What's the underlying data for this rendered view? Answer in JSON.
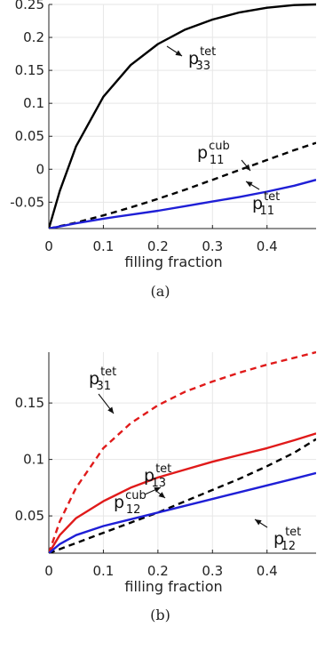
{
  "chart_data": [
    {
      "type": "line",
      "caption": "(a)",
      "xlabel": "filling fraction",
      "ylabel": "",
      "xlim": [
        0,
        0.49
      ],
      "ylim": [
        -0.09,
        0.25
      ],
      "xticks": [
        "0",
        "0.1",
        "0.2",
        "0.3",
        "0.4"
      ],
      "yticks": [
        "0.25",
        "0.2",
        "0.15",
        "0.1",
        "0.05",
        "0",
        "-0.05"
      ],
      "grid": true,
      "series": [
        {
          "name": "p33 tet",
          "label_base": "p",
          "label_sub": "33",
          "label_sup": "tet",
          "color": "#000000",
          "dash": "solid",
          "x": [
            0,
            0.02,
            0.05,
            0.1,
            0.15,
            0.2,
            0.25,
            0.3,
            0.35,
            0.4,
            0.45,
            0.49
          ],
          "y": [
            -0.09,
            -0.033,
            0.035,
            0.11,
            0.158,
            0.19,
            0.212,
            0.227,
            0.238,
            0.245,
            0.249,
            0.25
          ]
        },
        {
          "name": "p11 cub",
          "label_base": "p",
          "label_sub": "11",
          "label_sup": "cub",
          "color": "#000000",
          "dash": "dashed",
          "x": [
            0,
            0.05,
            0.1,
            0.15,
            0.2,
            0.25,
            0.3,
            0.35,
            0.4,
            0.45,
            0.49
          ],
          "y": [
            -0.09,
            -0.081,
            -0.07,
            -0.058,
            -0.045,
            -0.031,
            -0.016,
            -0.001,
            0.014,
            0.029,
            0.04
          ]
        },
        {
          "name": "p11 tet",
          "label_base": "p",
          "label_sub": "11",
          "label_sup": "tet",
          "color": "#1f1fd6",
          "dash": "solid",
          "x": [
            0,
            0.05,
            0.1,
            0.15,
            0.2,
            0.25,
            0.3,
            0.35,
            0.4,
            0.45,
            0.49
          ],
          "y": [
            -0.09,
            -0.082,
            -0.075,
            -0.069,
            -0.063,
            -0.056,
            -0.049,
            -0.042,
            -0.034,
            -0.025,
            -0.016
          ]
        }
      ]
    },
    {
      "type": "line",
      "caption": "(b)",
      "xlabel": "filling fraction",
      "ylabel": "",
      "xlim": [
        0,
        0.49
      ],
      "ylim": [
        0.017,
        0.195
      ],
      "xticks": [
        "0",
        "0.1",
        "0.2",
        "0.3",
        "0.4"
      ],
      "yticks": [
        "0.15",
        "0.1",
        "0.05"
      ],
      "grid": true,
      "series": [
        {
          "name": "p31 tet",
          "label_base": "p",
          "label_sub": "31",
          "label_sup": "tet",
          "color": "#e01a1a",
          "dash": "dashed",
          "x": [
            0,
            0.02,
            0.05,
            0.1,
            0.15,
            0.2,
            0.25,
            0.3,
            0.35,
            0.4,
            0.45,
            0.49
          ],
          "y": [
            0.017,
            0.045,
            0.075,
            0.11,
            0.132,
            0.148,
            0.16,
            0.169,
            0.177,
            0.184,
            0.19,
            0.195
          ]
        },
        {
          "name": "p13 tet",
          "label_base": "p",
          "label_sub": "13",
          "label_sup": "tet",
          "color": "#e01a1a",
          "dash": "solid",
          "x": [
            0,
            0.02,
            0.05,
            0.1,
            0.15,
            0.2,
            0.25,
            0.3,
            0.35,
            0.4,
            0.45,
            0.49
          ],
          "y": [
            0.017,
            0.033,
            0.048,
            0.063,
            0.075,
            0.084,
            0.091,
            0.098,
            0.104,
            0.11,
            0.117,
            0.123
          ]
        },
        {
          "name": "p12 cub",
          "label_base": "p",
          "label_sub": "12",
          "label_sup": "cub",
          "color": "#000000",
          "dash": "dashed",
          "x": [
            0,
            0.05,
            0.1,
            0.15,
            0.2,
            0.25,
            0.3,
            0.35,
            0.4,
            0.45,
            0.49
          ],
          "y": [
            0.017,
            0.026,
            0.035,
            0.044,
            0.053,
            0.063,
            0.073,
            0.083,
            0.094,
            0.106,
            0.118
          ]
        },
        {
          "name": "p12 tet",
          "label_base": "p",
          "label_sub": "12",
          "label_sup": "tet",
          "color": "#1f1fd6",
          "dash": "solid",
          "x": [
            0,
            0.02,
            0.05,
            0.1,
            0.15,
            0.2,
            0.25,
            0.3,
            0.35,
            0.4,
            0.45,
            0.49
          ],
          "y": [
            0.017,
            0.025,
            0.033,
            0.041,
            0.047,
            0.053,
            0.059,
            0.065,
            0.071,
            0.077,
            0.083,
            0.088
          ]
        }
      ]
    }
  ]
}
